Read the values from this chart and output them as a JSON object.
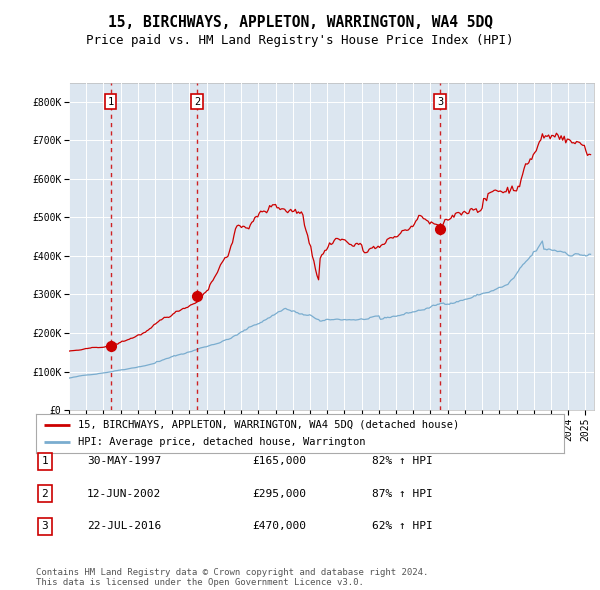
{
  "title": "15, BIRCHWAYS, APPLETON, WARRINGTON, WA4 5DQ",
  "subtitle": "Price paid vs. HM Land Registry's House Price Index (HPI)",
  "ylim": [
    0,
    850000
  ],
  "yticks": [
    0,
    100000,
    200000,
    300000,
    400000,
    500000,
    600000,
    700000,
    800000
  ],
  "ytick_labels": [
    "£0",
    "£100K",
    "£200K",
    "£300K",
    "£400K",
    "£500K",
    "£600K",
    "£700K",
    "£800K"
  ],
  "xlim_start": 1995.0,
  "xlim_end": 2025.5,
  "background_color": "#ffffff",
  "plot_bg_color": "#dce6f0",
  "grid_color": "#ffffff",
  "sale_dates": [
    1997.413,
    2002.449,
    2016.556
  ],
  "sale_prices": [
    165000,
    295000,
    470000
  ],
  "sale_labels": [
    "1",
    "2",
    "3"
  ],
  "sale_date_strs": [
    "30-MAY-1997",
    "12-JUN-2002",
    "22-JUL-2016"
  ],
  "sale_price_strs": [
    "£165,000",
    "£295,000",
    "£470,000"
  ],
  "sale_hpi_strs": [
    "82% ↑ HPI",
    "87% ↑ HPI",
    "62% ↑ HPI"
  ],
  "red_line_color": "#cc0000",
  "blue_line_color": "#7aadcf",
  "dot_color": "#cc0000",
  "vline_color": "#cc0000",
  "box_color": "#cc0000",
  "legend_red_label": "15, BIRCHWAYS, APPLETON, WARRINGTON, WA4 5DQ (detached house)",
  "legend_blue_label": "HPI: Average price, detached house, Warrington",
  "footer_text": "Contains HM Land Registry data © Crown copyright and database right 2024.\nThis data is licensed under the Open Government Licence v3.0.",
  "title_fontsize": 10.5,
  "subtitle_fontsize": 9,
  "tick_fontsize": 7,
  "legend_fontsize": 7.5,
  "footer_fontsize": 6.5
}
